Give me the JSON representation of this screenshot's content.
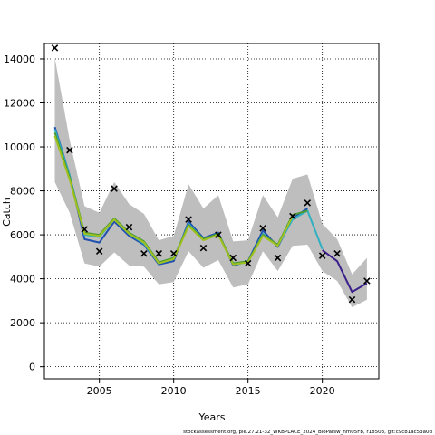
{
  "chart_data": {
    "type": "line",
    "xlabel": "Years",
    "ylabel": "Catch",
    "xlim": [
      2001.3,
      2023.8
    ],
    "ylim": [
      -550,
      14700
    ],
    "x_ticks": [
      2005,
      2010,
      2015,
      2020
    ],
    "y_ticks": [
      0,
      2000,
      4000,
      6000,
      8000,
      10000,
      12000,
      14000
    ],
    "grid": true,
    "footnote": "stockassessment.org, ple.27.21-32_WKBPLACE_2024_BioParsw_nm05Fb, r18503, git:c9c81ac53a0d",
    "confidence_band": {
      "x": [
        2002,
        2003,
        2004,
        2005,
        2006,
        2007,
        2008,
        2009,
        2010,
        2011,
        2012,
        2013,
        2014,
        2015,
        2016,
        2017,
        2018,
        2019,
        2020,
        2021,
        2022,
        2023
      ],
      "lower": [
        8400,
        7000,
        4700,
        4550,
        5200,
        4600,
        4550,
        3750,
        3850,
        5250,
        4500,
        4850,
        3600,
        3750,
        5250,
        4350,
        5500,
        5550,
        4350,
        3900,
        2700,
        3050
      ],
      "upper": [
        14050,
        10300,
        7300,
        7000,
        8400,
        7400,
        6950,
        5750,
        5950,
        8300,
        7200,
        7800,
        5700,
        5750,
        7800,
        6800,
        8550,
        8750,
        6500,
        5800,
        4200,
        4950
      ]
    },
    "series": [
      {
        "values": [
          10900,
          8700,
          5800,
          5650,
          6600,
          5950,
          5550,
          4650,
          4800,
          6600,
          5850,
          6100,
          4600,
          4800,
          6200,
          5450,
          6750,
          7200,
          null,
          null,
          null,
          null
        ],
        "color": "#2050b0"
      },
      {
        "values": [
          null,
          null,
          null,
          null,
          null,
          null,
          null,
          null,
          null,
          null,
          null,
          null,
          null,
          null,
          null,
          null,
          null,
          null,
          5300,
          4800,
          3400,
          3800
        ],
        "color": "#3a1f8a"
      },
      {
        "values": [
          10800,
          8700,
          6000,
          5900,
          6700,
          6050,
          5600,
          4700,
          4900,
          6500,
          5800,
          6050,
          4650,
          4750,
          6050,
          5500,
          6700,
          7100,
          5350,
          null,
          null,
          null
        ],
        "color": "#30b0c0"
      },
      {
        "values": [
          10650,
          8600,
          6100,
          6000,
          6750,
          6100,
          5700,
          4750,
          4950,
          6450,
          5800,
          6050,
          4700,
          4800,
          6000,
          5550,
          6900,
          7100,
          null,
          null,
          null,
          null
        ],
        "color": "#4a9a30"
      },
      {
        "values": [
          10500,
          8500,
          6050,
          5950,
          6700,
          6050,
          5650,
          4700,
          4900,
          6400,
          5750,
          6000,
          4650,
          4750,
          5950,
          5500,
          6850,
          null,
          null,
          null,
          null,
          null
        ],
        "color": "#a0c020"
      }
    ],
    "observed": {
      "x": [
        2002,
        2003,
        2004,
        2005,
        2006,
        2007,
        2008,
        2009,
        2010,
        2011,
        2012,
        2013,
        2014,
        2015,
        2016,
        2017,
        2018,
        2019,
        2020,
        2021,
        2022,
        2023
      ],
      "y": [
        14500,
        9850,
        6250,
        5250,
        8100,
        6350,
        5150,
        5150,
        5150,
        6700,
        5400,
        6000,
        4950,
        4700,
        6300,
        4950,
        6850,
        7450,
        5050,
        5150,
        3050,
        3900
      ]
    }
  }
}
